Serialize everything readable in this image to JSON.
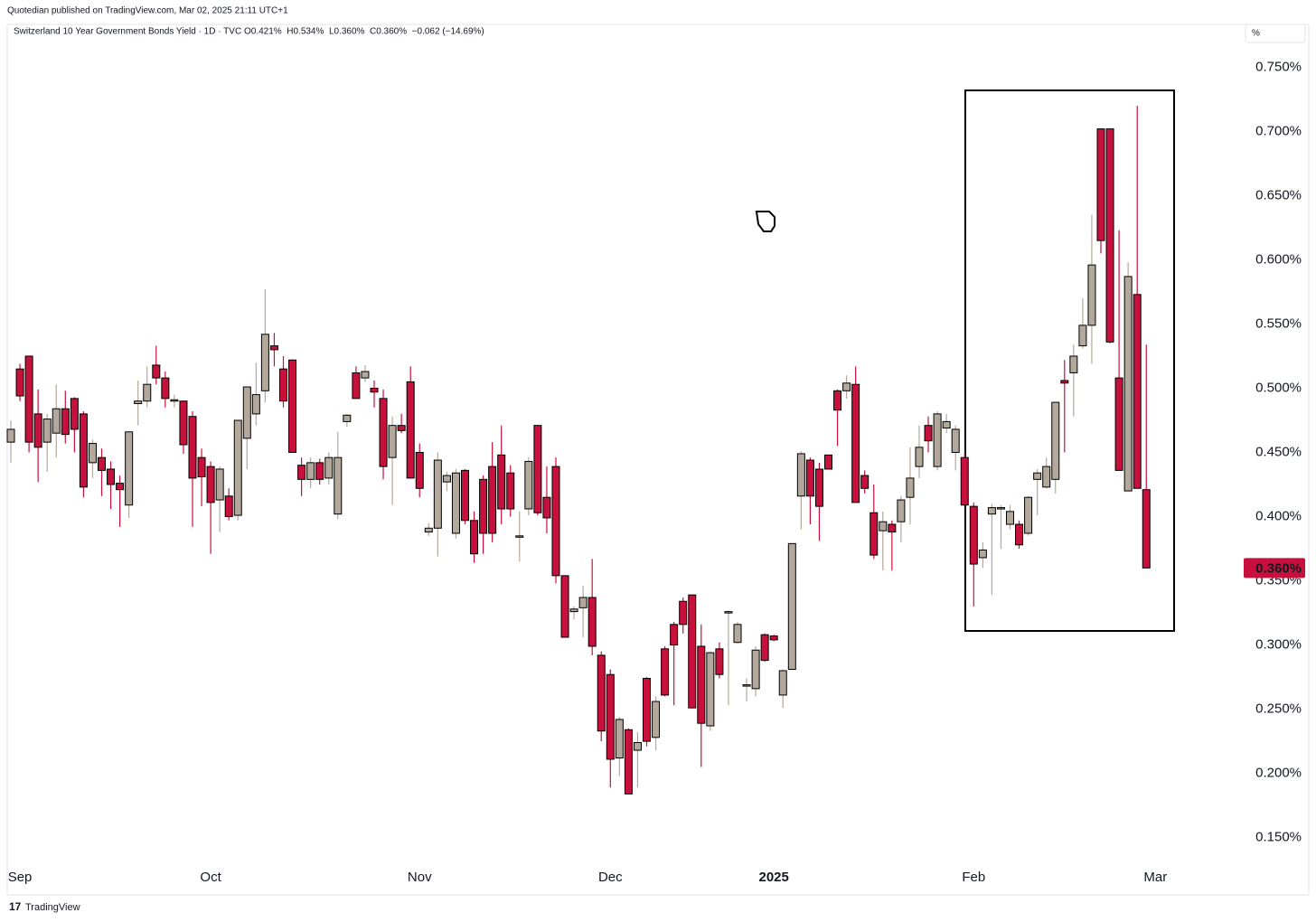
{
  "header": {
    "published": "Quotedian published on TradingView.com, Mar 02, 2025 21:11 UTC+1",
    "footer": "TradingView"
  },
  "chart_data": {
    "type": "candlestick",
    "title": "Switzerland 10 Year Government Bonds Yield · 1D · TVC",
    "readout": "O0.421%  H0.534%  L0.360%  C0.360%  −0.062 (−14.69%)",
    "scale_unit": "%",
    "categories": [
      null,
      "Sep",
      null,
      null,
      null,
      null,
      null,
      null,
      null,
      null,
      null,
      null,
      null,
      null,
      null,
      null,
      null,
      null,
      null,
      null,
      null,
      null,
      "Oct",
      null,
      null,
      null,
      null,
      null,
      null,
      null,
      null,
      null,
      null,
      null,
      null,
      null,
      null,
      null,
      null,
      null,
      null,
      null,
      null,
      null,
      null,
      "Nov",
      null,
      null,
      null,
      null,
      null,
      null,
      null,
      null,
      null,
      null,
      null,
      null,
      null,
      null,
      null,
      null,
      null,
      null,
      null,
      null,
      "Dec",
      null,
      null,
      null,
      null,
      null,
      null,
      null,
      null,
      null,
      null,
      null,
      null,
      null,
      null,
      null,
      null,
      null,
      "2025",
      null,
      null,
      null,
      null,
      null,
      null,
      null,
      null,
      null,
      null,
      null,
      null,
      null,
      null,
      null,
      null,
      null,
      null,
      null,
      null,
      null,
      "Feb",
      null,
      null,
      null,
      null,
      null,
      null,
      null,
      null,
      null,
      null,
      null,
      null,
      null,
      null,
      null,
      null,
      null,
      null,
      null,
      "Mar"
    ],
    "open": [
      0.458,
      0.515,
      0.525,
      0.48,
      0.458,
      0.465,
      0.484,
      0.492,
      0.48,
      0.442,
      0.446,
      0.437,
      0.426,
      0.409,
      0.488,
      0.49,
      0.518,
      0.508,
      0.49,
      0.49,
      0.478,
      0.446,
      0.439,
      0.413,
      0.416,
      0.401,
      0.461,
      0.48,
      0.498,
      0.533,
      0.515,
      0.522,
      0.44,
      0.429,
      0.442,
      0.43,
      0.402,
      0.474,
      0.512,
      0.508,
      0.5,
      0.492,
      0.446,
      0.471,
      0.505,
      0.45,
      0.388,
      0.391,
      0.427,
      0.387,
      0.436,
      0.397,
      0.429,
      0.439,
      0.448,
      0.434,
      0.384,
      0.406,
      0.471,
      0.415,
      0.439,
      0.354,
      0.326,
      0.329,
      0.337,
      0.292,
      0.277,
      0.212,
      0.234,
      0.218,
      0.274,
      0.228,
      0.297,
      0.316,
      0.334,
      0.339,
      0.299,
      0.237,
      0.297,
      0.325,
      0.302,
      0.268,
      0.266,
      0.308,
      0.307,
      0.261,
      0.281,
      0.416,
      0.444,
      0.437,
      0.448,
      0.498,
      0.498,
      0.503,
      0.432,
      0.403,
      0.389,
      0.394,
      0.396,
      0.415,
      0.439,
      0.471,
      0.439,
      0.469,
      0.45,
      0.446,
      0.408,
      0.368,
      0.402,
      0.406,
      0.394,
      0.394,
      0.387,
      0.429,
      0.423,
      0.429,
      0.506,
      0.512,
      0.533,
      0.549,
      0.702,
      0.702,
      0.508,
      0.42,
      0.573,
      0.421,
      null
    ],
    "high": [
      0.475,
      0.519,
      0.525,
      0.499,
      0.48,
      0.503,
      0.498,
      0.493,
      0.482,
      0.46,
      0.453,
      0.443,
      0.432,
      0.466,
      0.506,
      0.517,
      0.533,
      0.513,
      0.495,
      0.49,
      0.482,
      0.453,
      0.443,
      0.439,
      0.422,
      0.475,
      0.501,
      0.52,
      0.577,
      0.543,
      0.525,
      0.522,
      0.446,
      0.446,
      0.445,
      0.45,
      0.466,
      0.48,
      0.517,
      0.518,
      0.506,
      0.499,
      0.478,
      0.48,
      0.517,
      0.457,
      0.395,
      0.45,
      0.435,
      0.437,
      0.437,
      0.404,
      0.432,
      0.458,
      0.471,
      0.44,
      0.404,
      0.446,
      0.471,
      0.439,
      0.446,
      0.354,
      0.33,
      0.346,
      0.367,
      0.295,
      0.281,
      0.244,
      0.235,
      0.232,
      0.275,
      0.26,
      0.299,
      0.318,
      0.337,
      0.339,
      0.316,
      0.295,
      0.302,
      0.327,
      0.318,
      0.274,
      0.299,
      0.309,
      0.308,
      0.281,
      0.379,
      0.451,
      0.446,
      0.442,
      0.448,
      0.499,
      0.51,
      0.517,
      0.436,
      0.425,
      0.404,
      0.397,
      0.416,
      0.454,
      0.471,
      0.478,
      0.482,
      0.48,
      0.471,
      0.45,
      0.411,
      0.38,
      0.41,
      0.409,
      0.409,
      0.397,
      0.416,
      0.437,
      0.446,
      0.489,
      0.522,
      0.534,
      0.57,
      0.635,
      0.702,
      0.702,
      0.623,
      0.598,
      0.72,
      0.534,
      null
    ],
    "low": [
      0.442,
      0.49,
      0.45,
      0.427,
      0.435,
      0.446,
      0.457,
      0.45,
      0.415,
      0.43,
      0.416,
      0.406,
      0.392,
      0.399,
      0.471,
      0.485,
      0.503,
      0.485,
      0.485,
      0.449,
      0.392,
      0.408,
      0.371,
      0.388,
      0.397,
      0.397,
      0.437,
      0.471,
      0.489,
      0.517,
      0.485,
      0.45,
      0.416,
      0.422,
      0.425,
      0.425,
      0.398,
      0.47,
      0.492,
      0.505,
      0.485,
      0.429,
      0.409,
      0.465,
      0.43,
      0.415,
      0.385,
      0.369,
      0.42,
      0.383,
      0.394,
      0.364,
      0.371,
      0.38,
      0.394,
      0.4,
      0.365,
      0.401,
      0.401,
      0.387,
      0.348,
      0.306,
      0.32,
      0.306,
      0.292,
      0.225,
      0.189,
      0.198,
      0.184,
      0.189,
      0.221,
      0.218,
      0.26,
      0.253,
      0.309,
      0.251,
      0.205,
      0.233,
      0.274,
      0.253,
      0.301,
      0.256,
      0.26,
      0.287,
      0.303,
      0.251,
      0.281,
      0.39,
      0.394,
      0.381,
      0.437,
      0.455,
      0.492,
      0.411,
      0.418,
      0.367,
      0.358,
      0.358,
      0.38,
      0.394,
      0.43,
      0.45,
      0.436,
      0.465,
      0.436,
      0.408,
      0.33,
      0.36,
      0.339,
      0.375,
      0.39,
      0.375,
      0.385,
      0.401,
      0.422,
      0.418,
      0.45,
      0.478,
      0.531,
      0.519,
      0.605,
      0.535,
      0.436,
      0.42,
      0.422,
      0.36,
      null
    ],
    "close": [
      0.468,
      0.494,
      0.458,
      0.454,
      0.476,
      0.484,
      0.464,
      0.468,
      0.423,
      0.457,
      0.436,
      0.425,
      0.421,
      0.466,
      0.49,
      0.503,
      0.508,
      0.492,
      0.491,
      0.456,
      0.43,
      0.431,
      0.411,
      0.437,
      0.4,
      0.475,
      0.501,
      0.495,
      0.542,
      0.53,
      0.49,
      0.45,
      0.429,
      0.442,
      0.429,
      0.446,
      0.446,
      0.479,
      0.492,
      0.513,
      0.497,
      0.439,
      0.471,
      0.467,
      0.43,
      0.422,
      0.391,
      0.444,
      0.432,
      0.434,
      0.397,
      0.371,
      0.387,
      0.387,
      0.406,
      0.406,
      0.385,
      0.443,
      0.403,
      0.399,
      0.354,
      0.306,
      0.328,
      0.337,
      0.299,
      0.233,
      0.211,
      0.242,
      0.184,
      0.224,
      0.225,
      0.256,
      0.261,
      0.3,
      0.316,
      0.251,
      0.239,
      0.294,
      0.277,
      0.326,
      0.316,
      0.269,
      0.296,
      0.288,
      0.304,
      0.28,
      0.379,
      0.449,
      0.416,
      0.408,
      0.437,
      0.483,
      0.504,
      0.411,
      0.422,
      0.37,
      0.396,
      0.388,
      0.413,
      0.43,
      0.454,
      0.459,
      0.48,
      0.474,
      0.468,
      0.409,
      0.363,
      0.374,
      0.407,
      0.407,
      0.404,
      0.378,
      0.415,
      0.434,
      0.439,
      0.489,
      0.504,
      0.525,
      0.549,
      0.596,
      0.615,
      0.536,
      0.436,
      0.587,
      0.422,
      0.36,
      null
    ],
    "up_color": "#b2a89c",
    "down_color": "#c8103c",
    "last_price": {
      "value": 0.36,
      "label": "0.360%"
    },
    "ylim": [
      0.13,
      0.77
    ],
    "yticks": [
      {
        "value": 0.15,
        "label": "0.150%"
      },
      {
        "value": 0.2,
        "label": "0.200%"
      },
      {
        "value": 0.25,
        "label": "0.250%"
      },
      {
        "value": 0.3,
        "label": "0.300%"
      },
      {
        "value": 0.35,
        "label": "0.350%"
      },
      {
        "value": 0.4,
        "label": "0.400%"
      },
      {
        "value": 0.45,
        "label": "0.450%"
      },
      {
        "value": 0.5,
        "label": "0.500%"
      },
      {
        "value": 0.55,
        "label": "0.550%"
      },
      {
        "value": 0.6,
        "label": "0.600%"
      },
      {
        "value": 0.65,
        "label": "0.650%"
      },
      {
        "value": 0.7,
        "label": "0.700%"
      },
      {
        "value": 0.75,
        "label": "0.750%"
      }
    ],
    "grid": false
  }
}
